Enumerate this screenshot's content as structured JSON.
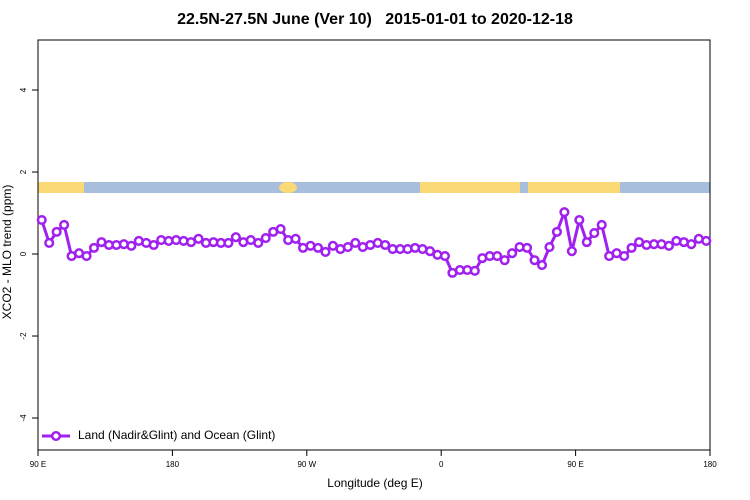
{
  "chart_data": {
    "type": "line",
    "title": "22.5N-27.5N June (Ver 10)   2015-01-01 to 2020-12-18",
    "xlabel": "Longitude (deg E)",
    "ylabel": "XCO2 - MLO trend (ppm)",
    "x": [
      92.5,
      97.5,
      102.5,
      107.5,
      112.5,
      117.5,
      122.5,
      127.5,
      132.5,
      137.5,
      142.5,
      147.5,
      152.5,
      157.5,
      162.5,
      167.5,
      172.5,
      177.5,
      182.5,
      187.5,
      192.5,
      197.5,
      202.5,
      207.5,
      212.5,
      217.5,
      222.5,
      227.5,
      232.5,
      237.5,
      242.5,
      247.5,
      252.5,
      257.5,
      262.5,
      267.5,
      272.5,
      277.5,
      282.5,
      287.5,
      292.5,
      297.5,
      302.5,
      307.5,
      312.5,
      317.5,
      322.5,
      327.5,
      332.5,
      337.5,
      342.5,
      347.5,
      352.5,
      357.5,
      362.5,
      367.5,
      372.5,
      377.5,
      382.5,
      387.5,
      392.5,
      397.5,
      402.5,
      407.5,
      412.5,
      417.5,
      422.5,
      427.5,
      432.5,
      437.5,
      442.5,
      447.5,
      452.5,
      457.5,
      462.5,
      467.5,
      472.5,
      477.5,
      482.5,
      487.5,
      492.5,
      497.5,
      502.5,
      507.5,
      512.5,
      517.5,
      522.5,
      527.5,
      532.5,
      537.5
    ],
    "series": [
      {
        "name": "Land (Nadir&Glint) and Ocean (Glint)",
        "color": "#a020f0",
        "values": [
          0.83,
          0.27,
          0.54,
          0.71,
          -0.05,
          0.02,
          -0.05,
          0.15,
          0.29,
          0.22,
          0.22,
          0.24,
          0.2,
          0.32,
          0.27,
          0.22,
          0.34,
          0.32,
          0.34,
          0.32,
          0.29,
          0.37,
          0.27,
          0.29,
          0.27,
          0.27,
          0.41,
          0.29,
          0.34,
          0.27,
          0.39,
          0.54,
          0.61,
          0.34,
          0.37,
          0.15,
          0.2,
          0.15,
          0.05,
          0.2,
          0.12,
          0.17,
          0.27,
          0.17,
          0.22,
          0.27,
          0.22,
          0.12,
          0.12,
          0.12,
          0.15,
          0.12,
          0.07,
          -0.02,
          -0.05,
          -0.46,
          -0.39,
          -0.39,
          -0.41,
          -0.1,
          -0.05,
          -0.05,
          -0.15,
          0.02,
          0.17,
          0.15,
          -0.15,
          -0.27,
          0.17,
          0.54,
          1.02,
          0.07,
          0.83,
          0.29,
          0.51,
          0.71,
          -0.05,
          0.02,
          -0.05,
          0.15,
          0.29,
          0.22,
          0.24,
          0.24,
          0.2,
          0.32,
          0.29,
          0.24,
          0.37,
          0.32
        ]
      }
    ],
    "xlim": [
      90,
      540
    ],
    "xticks": [
      {
        "value": 90,
        "label": "90 E"
      },
      180,
      {
        "value": 270,
        "label": "90 W"
      },
      {
        "value": 360,
        "label": "0"
      },
      {
        "value": 450,
        "label": "90 E"
      },
      180.0001
    ],
    "ylim": [
      -4.78,
      5.22
    ],
    "yticks": [
      -4,
      -2,
      0,
      2,
      4
    ],
    "legend": "bottom-left"
  }
}
